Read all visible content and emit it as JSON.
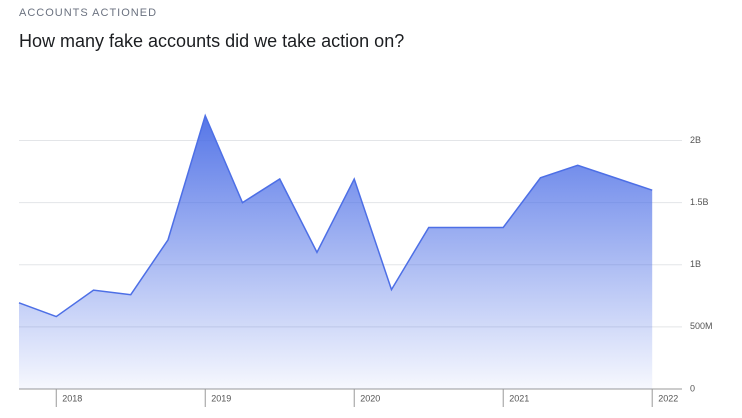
{
  "chart_data": {
    "type": "area",
    "kicker": "ACCOUNTS ACTIONED",
    "title": "How many fake accounts did we take action on?",
    "x": [
      2017.75,
      2018,
      2018.25,
      2018.5,
      2018.75,
      2019,
      2019.25,
      2019.5,
      2019.75,
      2020,
      2020.25,
      2020.5,
      2020.75,
      2021,
      2021.25,
      2021.5,
      2021.75,
      2022
    ],
    "series": [
      {
        "color": "#4d6fe6",
        "values": [
          694000000,
          583000000,
          796000000,
          759000000,
          1200000000,
          2200000000,
          1500000000,
          1690000000,
          1100000000,
          1690000000,
          800000000,
          1300000000,
          1300000000,
          1300000000,
          1700000000,
          1800000000,
          1700000000,
          1600000000
        ]
      }
    ],
    "xlim": [
      2017.75,
      2022.2
    ],
    "xticks": [
      2018,
      2019,
      2020,
      2021,
      2022
    ],
    "ylim": [
      0,
      2350000000
    ],
    "yticks": [
      0,
      {
        "value": 500000000,
        "label": "500M"
      },
      {
        "value": 1000000000,
        "label": "1B"
      },
      {
        "value": 1500000000,
        "label": "1.5B"
      },
      {
        "value": 2000000000,
        "label": "2B"
      }
    ],
    "grid": true
  }
}
